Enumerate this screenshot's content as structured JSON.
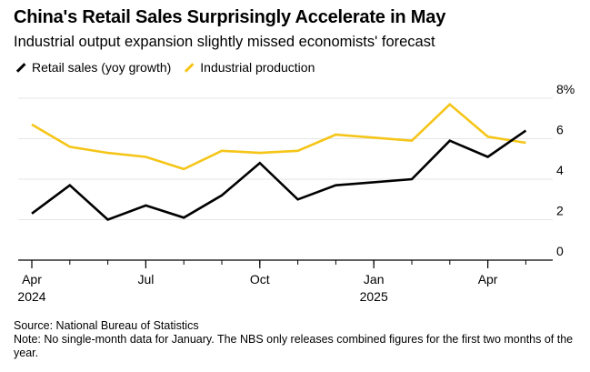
{
  "title": "China's Retail Sales Surprisingly Accelerate in May",
  "subtitle": "Industrial output expansion slightly missed economists' forecast",
  "legend": [
    {
      "label": "Retail sales (yoy growth)",
      "color": "#000000"
    },
    {
      "label": "Industrial production",
      "color": "#f5c518"
    }
  ],
  "chart_data": {
    "type": "line",
    "title": "China's Retail Sales Surprisingly Accelerate in May",
    "xlabel": "",
    "ylabel": "",
    "ylim": [
      0,
      8
    ],
    "y_unit": "%",
    "y_ticks": [
      {
        "value": 0,
        "label": "0"
      },
      {
        "value": 2,
        "label": "2"
      },
      {
        "value": 4,
        "label": "4"
      },
      {
        "value": 6,
        "label": "6"
      },
      {
        "value": 8,
        "label": "8%"
      }
    ],
    "x": [
      "2024-04",
      "2024-05",
      "2024-06",
      "2024-07",
      "2024-08",
      "2024-09",
      "2024-10",
      "2024-11",
      "2024-12",
      "2025-02",
      "2025-03",
      "2025-04",
      "2025-05"
    ],
    "x_ticks": [
      {
        "month": "2024-04",
        "label": "Apr",
        "year": "2024"
      },
      {
        "month": "2024-07",
        "label": "Jul",
        "year": ""
      },
      {
        "month": "2024-10",
        "label": "Oct",
        "year": ""
      },
      {
        "month": "2025-01",
        "label": "Jan",
        "year": "2025"
      },
      {
        "month": "2025-04",
        "label": "Apr",
        "year": ""
      }
    ],
    "series": [
      {
        "name": "Retail sales (yoy growth)",
        "color": "#000000",
        "values": [
          2.3,
          3.7,
          2.0,
          2.7,
          2.1,
          3.2,
          4.8,
          3.0,
          3.7,
          4.0,
          5.9,
          5.1,
          6.4
        ]
      },
      {
        "name": "Industrial production",
        "color": "#f5c518",
        "values": [
          6.7,
          5.6,
          5.3,
          5.1,
          4.5,
          5.4,
          5.3,
          5.4,
          6.2,
          5.9,
          7.7,
          6.1,
          5.8
        ]
      }
    ],
    "grid": true
  },
  "footer": {
    "source": "Source: National Bureau of Statistics",
    "note": "Note: No single-month data for January. The NBS only releases combined figures for the first two months of the year."
  }
}
